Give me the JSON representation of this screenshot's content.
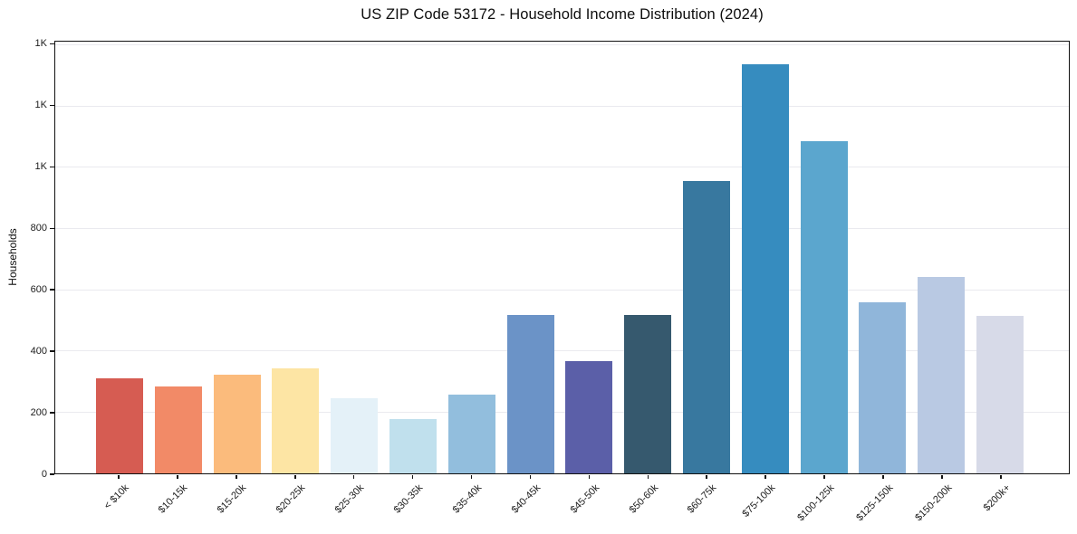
{
  "page": {
    "background": "#ffffff"
  },
  "chart_data": {
    "type": "bar",
    "title": "US ZIP Code 53172 - Household Income Distribution (2024)",
    "xlabel": "",
    "ylabel": "Households",
    "categories": [
      "< $10k",
      "$10-15k",
      "$15-20k",
      "$20-25k",
      "$25-30k",
      "$30-35k",
      "$35-40k",
      "$40-45k",
      "$45-50k",
      "$50-60k",
      "$60-75k",
      "$75-100k",
      "$100-125k",
      "$125-150k",
      "$150-200k",
      "$200k+"
    ],
    "values": [
      310,
      283,
      321,
      342,
      245,
      178,
      258,
      516,
      366,
      516,
      956,
      1337,
      1085,
      560,
      641,
      513
    ],
    "bar_colors": [
      "#d65c52",
      "#f28a67",
      "#fbbb7c",
      "#fde5a4",
      "#e4f1f8",
      "#c0e0ed",
      "#92bedd",
      "#6b93c7",
      "#5b5fa8",
      "#36596e",
      "#38789f",
      "#368cbf",
      "#5ba6ce",
      "#90b6da",
      "#b9c9e3",
      "#d7dae8"
    ],
    "ylim": [
      0,
      1410
    ],
    "yticks": [
      {
        "value": 0,
        "label": "0"
      },
      {
        "value": 200,
        "label": "200"
      },
      {
        "value": 400,
        "label": "400"
      },
      {
        "value": 600,
        "label": "600"
      },
      {
        "value": 800,
        "label": "800"
      },
      {
        "value": 1000,
        "label": "1K"
      },
      {
        "value": 1200,
        "label": "1K"
      },
      {
        "value": 1400,
        "label": "1K"
      }
    ],
    "grid": "horizontal-light",
    "legend": "none",
    "frame": "full-box",
    "xtick_rotation_deg": 45
  },
  "colors": {
    "frame": "#111111",
    "gridline": "#eaeaef",
    "tick_text": "#1c1c1c",
    "title_text": "#0d0d0d",
    "background": "#ffffff"
  }
}
